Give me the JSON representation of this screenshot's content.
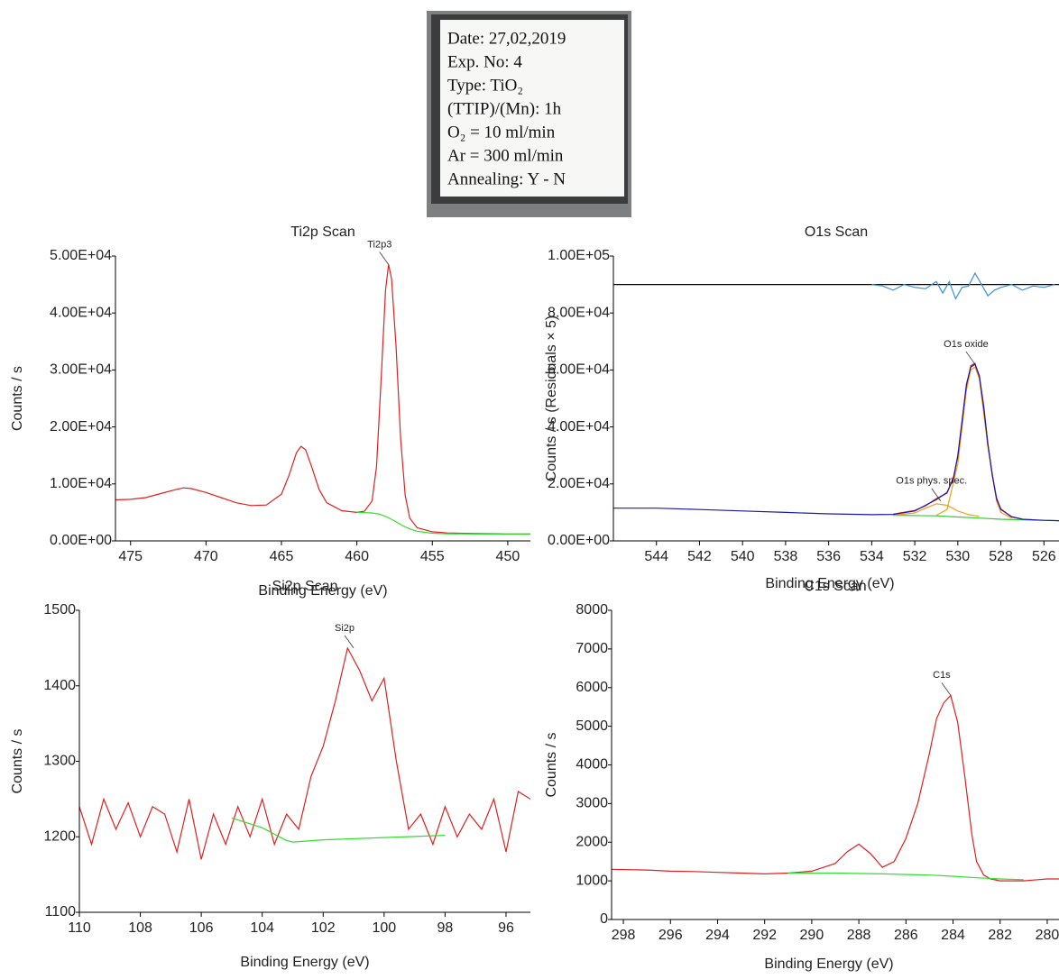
{
  "photo_label": {
    "lines": [
      "Date: 27,02,2019",
      "Exp. No: 4",
      "Type: TiO₂",
      "(TTIP)/(Mn): 1h",
      "O₂ = 10 ml/min",
      "Ar = 300 ml/min",
      "Annealing: Y - N"
    ]
  },
  "chart_data": [
    {
      "type": "line",
      "title": "Ti2p Scan",
      "xlabel": "Binding Energy (eV)",
      "ylabel": "Counts / s",
      "xlim": [
        476,
        448.5
      ],
      "ylim": [
        0,
        50000
      ],
      "xticks": [
        475,
        470,
        465,
        460,
        455,
        450
      ],
      "yticks": [
        {
          "value": 0,
          "label": "0.00E+00"
        },
        {
          "value": 10000,
          "label": "1.00E+04"
        },
        {
          "value": 20000,
          "label": "2.00E+04"
        },
        {
          "value": 30000,
          "label": "3.00E+04"
        },
        {
          "value": 40000,
          "label": "4.00E+04"
        },
        {
          "value": 50000,
          "label": "5.00E+04"
        }
      ],
      "series": [
        {
          "color": "#e02020",
          "x": [
            476,
            475,
            474,
            473,
            472,
            471.5,
            471,
            470,
            469,
            468,
            467,
            466,
            465,
            464.5,
            464,
            463.7,
            463.4,
            463,
            462.5,
            462,
            461,
            460,
            459.5,
            459,
            458.7,
            458.4,
            458.1,
            457.9,
            457.7,
            457.4,
            457.1,
            456.8,
            456.5,
            456,
            455,
            454,
            452,
            450,
            448.5
          ],
          "values": [
            7200,
            7300,
            7600,
            8300,
            9000,
            9300,
            9200,
            8500,
            7600,
            6700,
            6200,
            6300,
            8200,
            11500,
            15500,
            16600,
            16000,
            13000,
            9000,
            6700,
            5300,
            5000,
            5200,
            7000,
            13000,
            28000,
            44000,
            48500,
            46000,
            34000,
            18000,
            8000,
            4000,
            2300,
            1600,
            1400,
            1300,
            1200,
            1200
          ]
        },
        {
          "color": "#33dd33",
          "x": [
            460,
            459,
            458.5,
            458,
            457.5,
            457,
            456.5,
            456,
            455.5,
            455,
            454,
            452,
            450,
            448.5
          ],
          "values": [
            5000,
            4900,
            4700,
            4200,
            3500,
            2700,
            2100,
            1700,
            1500,
            1350,
            1250,
            1200,
            1150,
            1150
          ]
        }
      ],
      "annotations": [
        {
          "text": "Ti2p3",
          "x": 457.9,
          "y": 48500
        }
      ]
    },
    {
      "type": "line",
      "title": "O1s Scan",
      "xlabel": "Binding Energy (eV)",
      "ylabel": "Counts / s  (Residuals × 5)",
      "xlim": [
        546,
        525.3
      ],
      "ylim": [
        0,
        100000
      ],
      "xticks": [
        544,
        542,
        540,
        538,
        536,
        534,
        532,
        530,
        528,
        526
      ],
      "yticks": [
        {
          "value": 0,
          "label": "0.00E+00"
        },
        {
          "value": 20000,
          "label": "2.00E+04"
        },
        {
          "value": 40000,
          "label": "4.00E+04"
        },
        {
          "value": 60000,
          "label": "6.00E+04"
        },
        {
          "value": 80000,
          "label": "8.00E+04"
        },
        {
          "value": 100000,
          "label": "1.00E+05"
        }
      ],
      "series": [
        {
          "color": "#000000",
          "x": [
            546,
            525.3
          ],
          "values": [
            90000,
            90000
          ]
        },
        {
          "color": "#3a8fdd",
          "x": [
            534,
            533.5,
            533,
            532.5,
            532,
            531.5,
            531,
            530.7,
            530.4,
            530.1,
            529.8,
            529.5,
            529.2,
            528.9,
            528.6,
            528.3,
            528,
            527.5,
            527,
            526.5,
            526,
            525.5
          ],
          "values": [
            90000,
            89500,
            88000,
            90000,
            89000,
            88500,
            91000,
            87000,
            91000,
            85000,
            89000,
            89500,
            94000,
            90000,
            86000,
            88000,
            89000,
            90000,
            88000,
            89500,
            89000,
            90000
          ]
        },
        {
          "color": "#33cc33",
          "x": [
            533,
            531,
            530,
            529,
            528,
            527,
            526,
            525.3
          ],
          "values": [
            9000,
            8800,
            8400,
            8000,
            7600,
            7400,
            7200,
            7100
          ]
        },
        {
          "color": "#f0a020",
          "x": [
            531,
            530.5,
            530,
            529.6,
            529.4,
            529.2,
            529,
            528.6,
            528.2,
            528,
            527.5
          ],
          "values": [
            9000,
            11000,
            27000,
            53000,
            60000,
            61000,
            57000,
            33000,
            14000,
            10000,
            8000
          ]
        },
        {
          "color": "#f0a020",
          "x": [
            533,
            532,
            531.5,
            531,
            530.5,
            530,
            529.5,
            529
          ],
          "values": [
            9000,
            9800,
            11500,
            13000,
            12500,
            10500,
            9200,
            8600
          ]
        },
        {
          "color": "#e02020",
          "x": [
            533,
            532,
            531.5,
            531,
            530.5,
            530.2,
            530,
            529.8,
            529.6,
            529.4,
            529.2,
            529,
            528.8,
            528.6,
            528.4,
            528.2,
            528,
            527.5,
            527
          ],
          "values": [
            9400,
            10700,
            12300,
            14800,
            16800,
            22500,
            29500,
            42500,
            54500,
            61500,
            62300,
            57500,
            47500,
            33500,
            23500,
            14500,
            11200,
            8400,
            7700
          ]
        },
        {
          "color": "#1a1aaa",
          "x": [
            546,
            544,
            542,
            540,
            538,
            536,
            534,
            533,
            532,
            531.5,
            531,
            530.5,
            530.2,
            530,
            529.8,
            529.6,
            529.4,
            529.2,
            529,
            528.8,
            528.6,
            528.4,
            528.2,
            528,
            527.5,
            527,
            526,
            525.3
          ],
          "values": [
            11500,
            11500,
            11000,
            10500,
            10000,
            9500,
            9200,
            9300,
            10500,
            12500,
            14500,
            17000,
            22000,
            30000,
            42000,
            55000,
            61000,
            62000,
            58000,
            47000,
            34000,
            23000,
            15000,
            11000,
            8500,
            7600,
            7200,
            7100
          ]
        }
      ],
      "annotations": [
        {
          "text": "O1s oxide",
          "x": 529.2,
          "y": 62000
        },
        {
          "text": "O1s phys. spec.",
          "x": 530.8,
          "y": 14000
        }
      ]
    },
    {
      "type": "line",
      "title": "Si2p Scan",
      "xlabel": "Binding Energy (eV)",
      "ylabel": "Counts / s",
      "xlim": [
        110,
        95.2
      ],
      "ylim": [
        1100,
        1500
      ],
      "xticks": [
        110,
        108,
        106,
        104,
        102,
        100,
        98,
        96
      ],
      "yticks": [
        1100,
        1200,
        1300,
        1400,
        1500
      ],
      "series": [
        {
          "color": "#e02020",
          "x": [
            110,
            109.6,
            109.2,
            108.8,
            108.4,
            108,
            107.6,
            107.2,
            106.8,
            106.4,
            106,
            105.6,
            105.2,
            104.8,
            104.4,
            104,
            103.6,
            103.2,
            102.8,
            102.4,
            102,
            101.6,
            101.2,
            100.8,
            100.4,
            100,
            99.6,
            99.2,
            98.8,
            98.4,
            98,
            97.6,
            97.2,
            96.8,
            96.4,
            96,
            95.6,
            95.2
          ],
          "values": [
            1240,
            1190,
            1250,
            1210,
            1245,
            1200,
            1240,
            1230,
            1180,
            1250,
            1170,
            1230,
            1190,
            1240,
            1200,
            1250,
            1190,
            1230,
            1210,
            1280,
            1320,
            1380,
            1450,
            1420,
            1380,
            1410,
            1300,
            1210,
            1230,
            1190,
            1240,
            1200,
            1230,
            1210,
            1250,
            1180,
            1260,
            1250
          ]
        },
        {
          "color": "#33dd33",
          "x": [
            105,
            104,
            103.2,
            103,
            102,
            100,
            98
          ],
          "values": [
            1225,
            1212,
            1195,
            1193,
            1196,
            1199,
            1202
          ]
        }
      ],
      "annotations": [
        {
          "text": "Si2p",
          "x": 101,
          "y": 1450
        }
      ]
    },
    {
      "type": "line",
      "title": "C1s Scan",
      "xlabel": "Binding Energy (eV)",
      "ylabel": "Counts / s",
      "xlim": [
        298.5,
        279.5
      ],
      "ylim": [
        0,
        8000
      ],
      "xticks": [
        298,
        296,
        294,
        292,
        290,
        288,
        286,
        284,
        282,
        280
      ],
      "yticks": [
        0,
        1000,
        2000,
        3000,
        4000,
        5000,
        6000,
        7000,
        8000
      ],
      "series": [
        {
          "color": "#e02020",
          "x": [
            298.5,
            297,
            296,
            295,
            294,
            293,
            292,
            291,
            290,
            289,
            288.5,
            288,
            287.5,
            287,
            286.5,
            286,
            285.5,
            285,
            284.7,
            284.4,
            284.1,
            283.8,
            283.5,
            283.2,
            283,
            282.7,
            282.4,
            282,
            281,
            280,
            279.5
          ],
          "values": [
            1300,
            1280,
            1250,
            1240,
            1220,
            1200,
            1180,
            1200,
            1250,
            1450,
            1750,
            1950,
            1700,
            1350,
            1500,
            2100,
            3000,
            4300,
            5200,
            5600,
            5800,
            5100,
            3700,
            2200,
            1500,
            1150,
            1050,
            1000,
            1000,
            1050,
            1050
          ]
        },
        {
          "color": "#33dd33",
          "x": [
            291,
            289,
            287,
            285,
            284,
            283,
            282,
            281
          ],
          "values": [
            1200,
            1200,
            1180,
            1150,
            1120,
            1080,
            1050,
            1030
          ]
        }
      ],
      "annotations": [
        {
          "text": "C1s",
          "x": 284.1,
          "y": 5800
        }
      ]
    }
  ]
}
